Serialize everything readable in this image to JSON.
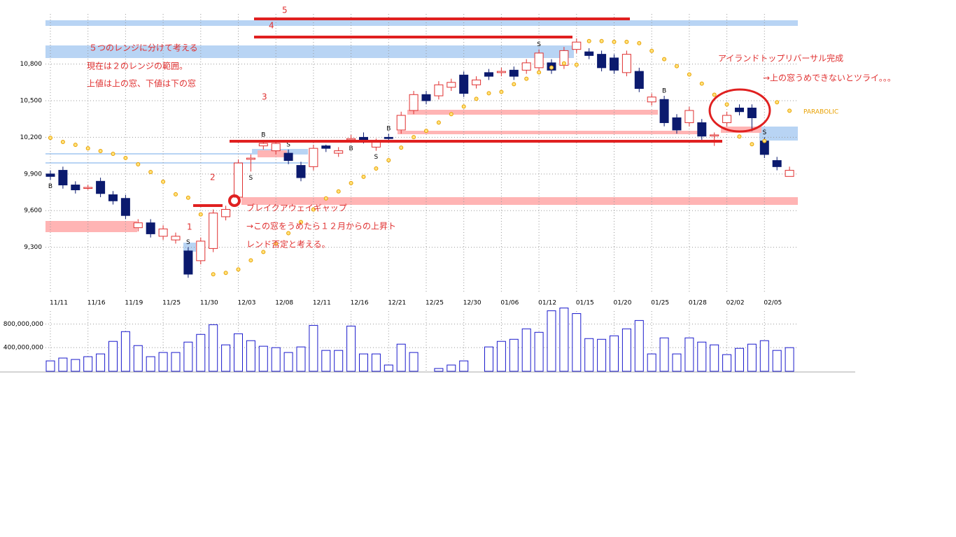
{
  "chart_data": {
    "type": "candlestick",
    "categories": [
      "11/11",
      null,
      null,
      "11/16",
      null,
      null,
      "11/19",
      null,
      null,
      "11/25",
      null,
      null,
      "11/30",
      null,
      null,
      "12/03",
      null,
      null,
      "12/08",
      null,
      null,
      "12/11",
      null,
      null,
      "12/16",
      null,
      null,
      "12/21",
      null,
      null,
      "12/25",
      null,
      null,
      "12/30",
      null,
      null,
      "01/06",
      null,
      null,
      "01/12",
      null,
      null,
      "01/15",
      null,
      null,
      "01/20",
      null,
      null,
      "01/25",
      null,
      null,
      "01/28",
      null,
      null,
      "02/02",
      null,
      null,
      "02/05",
      null,
      null
    ],
    "open": [
      9900,
      9930,
      9810,
      9790,
      9840,
      9730,
      9700,
      9460,
      9500,
      9390,
      9360,
      9270,
      9190,
      9290,
      9550,
      9710,
      10020,
      10130,
      10090,
      10070,
      9970,
      9960,
      10130,
      10070,
      10180,
      10200,
      10120,
      10200,
      10260,
      10420,
      10550,
      10540,
      10610,
      10710,
      10630,
      10730,
      10730,
      10750,
      10750,
      10770,
      10810,
      10790,
      10920,
      10900,
      10880,
      10850,
      10730,
      10740,
      10490,
      10510,
      10360,
      10320,
      10320,
      10220,
      10320,
      10440,
      10440,
      10170,
      10010,
      9880
    ],
    "high": [
      9930,
      9960,
      9840,
      9810,
      9870,
      9760,
      9730,
      9530,
      9530,
      9480,
      9420,
      9300,
      9380,
      9610,
      9640,
      10020,
      10060,
      10180,
      10180,
      10100,
      10000,
      10140,
      10140,
      10120,
      10220,
      10240,
      10190,
      10230,
      10410,
      10580,
      10580,
      10660,
      10680,
      10740,
      10700,
      10760,
      10770,
      10780,
      10840,
      10920,
      10840,
      10940,
      11010,
      10930,
      10910,
      10880,
      10910,
      10770,
      10560,
      10540,
      10390,
      10450,
      10350,
      10240,
      10410,
      10470,
      10470,
      10200,
      10040,
      9960
    ],
    "low": [
      9850,
      9780,
      9740,
      9770,
      9710,
      9650,
      9530,
      9430,
      9380,
      9360,
      9330,
      9050,
      9160,
      9260,
      9520,
      9680,
      9920,
      10100,
      10060,
      9980,
      9840,
      9930,
      10080,
      10040,
      10160,
      10150,
      10090,
      10160,
      10230,
      10390,
      10470,
      10510,
      10580,
      10530,
      10600,
      10670,
      10700,
      10670,
      10720,
      10740,
      10720,
      10760,
      10890,
      10840,
      10740,
      10720,
      10700,
      10570,
      10460,
      10290,
      10230,
      10290,
      10180,
      10130,
      10290,
      10380,
      10250,
      10030,
      9930,
      9900
    ],
    "close": [
      9880,
      9810,
      9770,
      9790,
      9740,
      9680,
      9560,
      9500,
      9410,
      9450,
      9390,
      9080,
      9350,
      9580,
      9610,
      9990,
      10030,
      10150,
      10150,
      10010,
      9870,
      10110,
      10110,
      10090,
      10190,
      10180,
      10160,
      10190,
      10380,
      10550,
      10500,
      10630,
      10650,
      10560,
      10670,
      10700,
      10740,
      10700,
      10810,
      10890,
      10750,
      10910,
      10980,
      10870,
      10770,
      10750,
      10880,
      10600,
      10530,
      10320,
      10260,
      10420,
      10210,
      10220,
      10380,
      10410,
      10360,
      10060,
      9960,
      9930
    ],
    "up_color": "#e03030",
    "down_color": "#0b1a6e",
    "indicator": {
      "name": "PARABOLIC",
      "color": "#e8a000",
      "values": [
        10196,
        10162,
        10139,
        10110,
        10088,
        10065,
        10031,
        9979,
        9916,
        9837,
        9734,
        9706,
        9569,
        9079,
        9090,
        9118,
        9193,
        9261,
        9329,
        9415,
        9506,
        9609,
        9700,
        9757,
        9825,
        9877,
        9945,
        10013,
        10116,
        10202,
        10253,
        10321,
        10390,
        10452,
        10515,
        10561,
        10572,
        10635,
        10680,
        10732,
        10771,
        10806,
        10794,
        10988,
        10988,
        10982,
        10982,
        10971,
        10908,
        10840,
        10783,
        10715,
        10640,
        10549,
        10469,
        10207,
        10144,
        10170,
        10487,
        10418
      ]
    },
    "signals": [
      "B",
      null,
      null,
      null,
      null,
      null,
      null,
      null,
      null,
      null,
      null,
      "S",
      null,
      null,
      null,
      null,
      "S",
      "B",
      null,
      "S",
      null,
      null,
      null,
      null,
      "B",
      null,
      "S",
      "B",
      null,
      null,
      null,
      null,
      null,
      null,
      null,
      null,
      null,
      null,
      null,
      "S",
      null,
      null,
      null,
      null,
      null,
      null,
      null,
      null,
      null,
      "B",
      null,
      null,
      null,
      null,
      null,
      null,
      null,
      "S",
      null,
      null
    ],
    "ylim": [
      8920,
      11210
    ],
    "yticks": [
      {
        "value": 9300,
        "label": "9,300"
      },
      {
        "value": 9600,
        "label": "9,600"
      },
      {
        "value": 9900,
        "label": "9,900"
      },
      {
        "value": 10200,
        "label": "10,200"
      },
      {
        "value": 10500,
        "label": "10,500"
      },
      {
        "value": 10800,
        "label": "10,800"
      }
    ],
    "grid": true,
    "volume": {
      "color": "#1a1acc",
      "values": [
        176000000,
        224000000,
        200000000,
        247000000,
        294000000,
        506000000,
        671000000,
        435000000,
        247000000,
        318000000,
        318000000,
        494000000,
        624000000,
        788000000,
        447000000,
        635000000,
        518000000,
        424000000,
        400000000,
        318000000,
        412000000,
        776000000,
        353000000,
        353000000,
        765000000,
        294000000,
        294000000,
        106000000,
        459000000,
        318000000,
        null,
        47000000,
        106000000,
        176000000,
        null,
        412000000,
        506000000,
        541000000,
        718000000,
        659000000,
        1024000000,
        1071000000,
        976000000,
        553000000,
        541000000,
        600000000,
        718000000,
        859000000,
        294000000,
        565000000,
        294000000,
        565000000,
        494000000,
        447000000,
        282000000,
        388000000,
        459000000,
        518000000,
        353000000,
        400000000
      ],
      "ylim": [
        0,
        1100000000
      ],
      "yticks": [
        {
          "value": 400000000,
          "label": "400,000,000"
        },
        {
          "value": 800000000,
          "label": "800,000,000"
        }
      ]
    },
    "annotations": {
      "ranges_title": "５つのレンジに分けて考える",
      "ranges_now": "現在は２のレンジの範囲。",
      "ranges_bounds": "上値は上の窓、下値は下の窓",
      "island_title": "アイランドトップリバーサル完成",
      "island_note": "→上の窓うめできないとツライ。。。",
      "gap_title": "ブレイクアウェイギャップ",
      "gap_note_1": "→この窓をうめたら１２月からの上昇ト",
      "gap_note_2": "レンド否定と考える。",
      "range_5": "5",
      "range_4": "4",
      "range_3": "3",
      "range_2": "2",
      "range_1": "1"
    }
  }
}
